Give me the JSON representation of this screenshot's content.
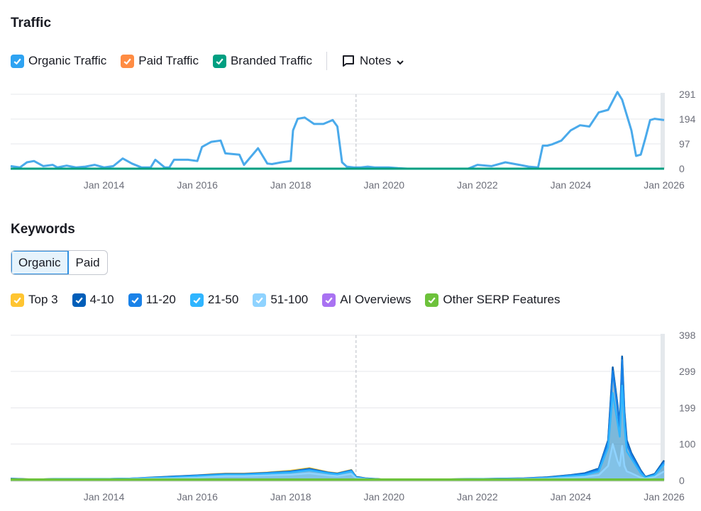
{
  "traffic": {
    "title": "Traffic",
    "legend": [
      {
        "label": "Organic Traffic",
        "color": "#2ea3f2",
        "icon": "check-icon"
      },
      {
        "label": "Paid Traffic",
        "color": "#ff8c43",
        "icon": "check-icon"
      },
      {
        "label": "Branded Traffic",
        "color": "#009f81",
        "icon": "check-icon"
      }
    ],
    "notes_label": "Notes"
  },
  "keywords": {
    "title": "Keywords",
    "tabs": [
      {
        "label": "Organic",
        "active": true
      },
      {
        "label": "Paid",
        "active": false
      }
    ],
    "legend": [
      {
        "label": "Top 3",
        "color": "#ffc531",
        "icon": "check-icon"
      },
      {
        "label": "4-10",
        "color": "#005eb9",
        "icon": "check-icon"
      },
      {
        "label": "11-20",
        "color": "#1a82e8",
        "icon": "check-icon"
      },
      {
        "label": "21-50",
        "color": "#2fb5ff",
        "icon": "check-icon"
      },
      {
        "label": "51-100",
        "color": "#8fd3ff",
        "icon": "check-icon"
      },
      {
        "label": "AI Overviews",
        "color": "#a972f2",
        "icon": "check-icon"
      },
      {
        "label": "Other SERP Features",
        "color": "#6dc23b",
        "icon": "check-icon"
      }
    ]
  },
  "chart_data": [
    {
      "type": "line",
      "title": "Traffic",
      "xlim": [
        2012.0,
        2026.0
      ],
      "ylim": [
        0,
        291
      ],
      "x_ticks": [
        {
          "x": 2014,
          "label": "Jan 2014"
        },
        {
          "x": 2016,
          "label": "Jan 2016"
        },
        {
          "x": 2018,
          "label": "Jan 2018"
        },
        {
          "x": 2020,
          "label": "Jan 2020"
        },
        {
          "x": 2022,
          "label": "Jan 2022"
        },
        {
          "x": 2024,
          "label": "Jan 2024"
        },
        {
          "x": 2026,
          "label": "Jan 2026"
        }
      ],
      "y_ticks": [
        "291",
        "194",
        "97",
        "0"
      ],
      "y_tick_values": [
        291,
        194,
        97,
        0
      ],
      "grid": true,
      "marker_x": 2019.4,
      "series": [
        {
          "name": "Organic Traffic",
          "color": "#4aaaeb",
          "x": [
            2012.0,
            2012.2,
            2012.35,
            2012.5,
            2012.7,
            2012.9,
            2013.0,
            2013.2,
            2013.4,
            2013.6,
            2013.8,
            2014.0,
            2014.2,
            2014.4,
            2014.6,
            2014.8,
            2015.0,
            2015.1,
            2015.3,
            2015.4,
            2015.5,
            2015.8,
            2016.0,
            2016.1,
            2016.3,
            2016.5,
            2016.6,
            2016.9,
            2017.0,
            2017.3,
            2017.5,
            2017.6,
            2017.8,
            2018.0,
            2018.05,
            2018.15,
            2018.3,
            2018.5,
            2018.7,
            2018.9,
            2019.0,
            2019.1,
            2019.2,
            2019.35,
            2019.4,
            2019.5,
            2019.65,
            2019.8,
            2020.1,
            2020.3,
            2020.5,
            2021.0,
            2021.5,
            2021.8,
            2022.0,
            2022.3,
            2022.6,
            2022.9,
            2023.1,
            2023.3,
            2023.4,
            2023.5,
            2023.6,
            2023.8,
            2024.0,
            2024.2,
            2024.4,
            2024.6,
            2024.8,
            2025.0,
            2025.1,
            2025.3,
            2025.4,
            2025.5,
            2025.6,
            2025.7,
            2025.8,
            2026.0
          ],
          "y": [
            10,
            5,
            25,
            30,
            10,
            15,
            5,
            12,
            5,
            8,
            15,
            5,
            10,
            40,
            20,
            5,
            5,
            35,
            5,
            5,
            35,
            35,
            30,
            85,
            105,
            110,
            60,
            55,
            15,
            80,
            20,
            18,
            25,
            30,
            150,
            195,
            200,
            175,
            175,
            190,
            165,
            25,
            8,
            5,
            5,
            5,
            8,
            5,
            5,
            2,
            0,
            0,
            0,
            0,
            15,
            10,
            25,
            15,
            8,
            5,
            90,
            90,
            95,
            110,
            150,
            170,
            165,
            220,
            230,
            300,
            270,
            150,
            50,
            55,
            120,
            190,
            195,
            190
          ]
        },
        {
          "name": "Paid Traffic",
          "color": "#ff8c43",
          "x": [
            2012.0,
            2026.0
          ],
          "y": [
            0,
            0
          ]
        },
        {
          "name": "Branded Traffic",
          "color": "#009f81",
          "x": [
            2012.0,
            2026.0
          ],
          "y": [
            0,
            0
          ]
        }
      ]
    },
    {
      "type": "area",
      "title": "Keywords",
      "xlim": [
        2012.0,
        2026.0
      ],
      "ylim": [
        0,
        398
      ],
      "x_ticks": [
        {
          "x": 2014,
          "label": "Jan 2014"
        },
        {
          "x": 2016,
          "label": "Jan 2016"
        },
        {
          "x": 2018,
          "label": "Jan 2018"
        },
        {
          "x": 2020,
          "label": "Jan 2020"
        },
        {
          "x": 2022,
          "label": "Jan 2022"
        },
        {
          "x": 2024,
          "label": "Jan 2024"
        },
        {
          "x": 2026,
          "label": "Jan 2026"
        }
      ],
      "y_ticks": [
        "398",
        "299",
        "199",
        "100",
        "0"
      ],
      "y_tick_values": [
        398,
        299,
        199,
        100,
        0
      ],
      "grid": true,
      "marker_x": 2019.4,
      "x": [
        2012.0,
        2012.5,
        2013.0,
        2013.5,
        2014.0,
        2014.5,
        2015.0,
        2015.5,
        2016.0,
        2016.3,
        2016.6,
        2017.0,
        2017.5,
        2018.0,
        2018.4,
        2018.8,
        2019.0,
        2019.3,
        2019.4,
        2019.6,
        2020.0,
        2021.0,
        2022.0,
        2023.0,
        2023.5,
        2024.0,
        2024.3,
        2024.6,
        2024.8,
        2024.9,
        2025.0,
        2025.05,
        2025.1,
        2025.15,
        2025.2,
        2025.3,
        2025.5,
        2025.6,
        2025.8,
        2026.0
      ],
      "series": [
        {
          "name": "51-100",
          "color": "#8fd3ff",
          "values": [
            3,
            2,
            3,
            3,
            3,
            4,
            5,
            6,
            8,
            10,
            12,
            12,
            14,
            16,
            20,
            14,
            12,
            18,
            6,
            4,
            2,
            2,
            3,
            4,
            5,
            8,
            10,
            15,
            40,
            100,
            55,
            40,
            95,
            40,
            25,
            20,
            8,
            5,
            10,
            25
          ]
        },
        {
          "name": "21-50",
          "color": "#2fb5ff",
          "values": [
            4,
            3,
            4,
            4,
            4,
            5,
            7,
            9,
            12,
            14,
            16,
            16,
            19,
            22,
            28,
            20,
            17,
            25,
            8,
            5,
            3,
            3,
            4,
            5,
            7,
            12,
            15,
            25,
            90,
            240,
            160,
            120,
            260,
            150,
            80,
            60,
            20,
            8,
            15,
            45
          ]
        },
        {
          "name": "11-20",
          "color": "#1a82e8",
          "values": [
            4,
            3,
            4,
            4,
            4,
            5,
            7,
            10,
            13,
            15,
            17,
            17,
            20,
            24,
            30,
            21,
            18,
            27,
            9,
            5,
            3,
            3,
            4,
            5,
            8,
            14,
            18,
            30,
            105,
            300,
            200,
            140,
            330,
            180,
            100,
            70,
            25,
            9,
            16,
            50
          ]
        },
        {
          "name": "4-10",
          "color": "#005eb9",
          "values": [
            5,
            3,
            4,
            4,
            4,
            5,
            8,
            11,
            14,
            16,
            18,
            18,
            21,
            25,
            32,
            22,
            19,
            28,
            10,
            6,
            3,
            3,
            4,
            6,
            9,
            15,
            20,
            33,
            110,
            310,
            210,
            150,
            340,
            190,
            110,
            75,
            28,
            10,
            18,
            55
          ]
        },
        {
          "name": "Top 3",
          "color": "#ffc531",
          "values": [
            5,
            3,
            4,
            4,
            4,
            5,
            8,
            11,
            14,
            17,
            19,
            19,
            22,
            27,
            34,
            23,
            20,
            29,
            10,
            6,
            3,
            3,
            4,
            6,
            9,
            15,
            20,
            33,
            110,
            310,
            210,
            150,
            340,
            190,
            110,
            75,
            28,
            10,
            18,
            55
          ]
        }
      ]
    }
  ]
}
